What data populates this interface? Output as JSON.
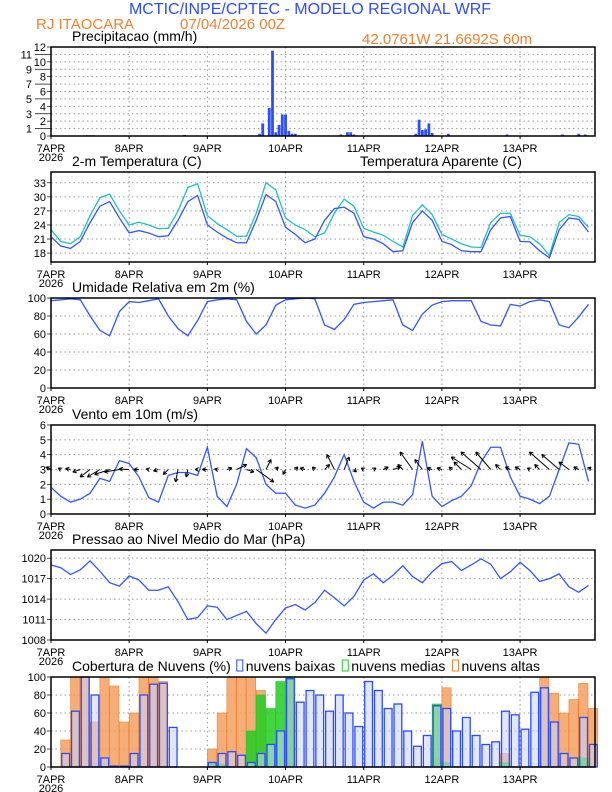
{
  "header": {
    "title": "MCTIC/INPE/CPTEC - MODELO REGIONAL WRF",
    "location": "RJ ITAOCARA",
    "run": "07/04/2026 00Z",
    "coords": "42.0761W 21.6692S 60m"
  },
  "colors": {
    "title": "#2b4cff",
    "orange": "#f08030",
    "line": "#3355ff",
    "apparent": "#20c0c0",
    "green": "#22cc22",
    "orange_fill": "#f5a060",
    "blue_fill": "#c8d4ff"
  },
  "x_axis": {
    "labels": [
      "7APR",
      "8APR",
      "9APR",
      "10APR",
      "11APR",
      "12APR",
      "13APR"
    ],
    "year": "2026",
    "step_hours": 3
  },
  "chart_data": [
    {
      "id": "precip",
      "type": "bar",
      "title": "Precipitacao (mm/h)",
      "ylim": [
        0,
        12
      ],
      "yticks": [
        "0",
        "1",
        "2",
        "3",
        "4",
        "5",
        "6",
        "7",
        "8",
        "9",
        "10",
        "11",
        "12"
      ],
      "grid": true,
      "hours": [
        11,
        12,
        13,
        41,
        64,
        65,
        67,
        68,
        69,
        70,
        71,
        72,
        73,
        74,
        75,
        89,
        91,
        92,
        93,
        112,
        113,
        114,
        115,
        116,
        117,
        122,
        140,
        157,
        162,
        164
      ],
      "values": [
        0.1,
        0.1,
        0.1,
        0.15,
        0.3,
        1.7,
        3.8,
        11.5,
        0.5,
        1.5,
        2.9,
        2.9,
        0.7,
        0.3,
        0.3,
        0.2,
        0.5,
        0.5,
        0.2,
        0.3,
        2.2,
        0.8,
        0.9,
        1.7,
        0.4,
        0.3,
        0.2,
        0.2,
        0.3,
        0.2
      ]
    },
    {
      "id": "temp",
      "type": "line",
      "title": "2-m Temperatura (C)",
      "ylim": [
        16.1,
        35.3
      ],
      "yticks": [
        "18",
        "21",
        "24",
        "27",
        "30",
        "33"
      ],
      "grid": true,
      "series": [
        {
          "name": "Temperatura Aparente (C)",
          "values": [
            23,
            20.5,
            20,
            21.5,
            26,
            29.8,
            30.6,
            27,
            24,
            24.6,
            24,
            23.2,
            23.3,
            27,
            32,
            32.8,
            26,
            24.3,
            23,
            21.6,
            21.6,
            26.5,
            33,
            31.5,
            25.5,
            24,
            23,
            21.5,
            22.3,
            26.5,
            29.5,
            28,
            23.3,
            22.5,
            21.8,
            20.5,
            19.3,
            26,
            28.3,
            26.2,
            22,
            21,
            20,
            19.3,
            19.2,
            24.5,
            26.5,
            26.5,
            21.8,
            21.5,
            20,
            17.5,
            24.5,
            26.2,
            25.8,
            23.5
          ]
        },
        {
          "name": "",
          "values": [
            21.5,
            19.5,
            19,
            20.5,
            24.5,
            28,
            29,
            25.5,
            22.3,
            22.8,
            22.3,
            21.5,
            21.7,
            25,
            29,
            30.3,
            24,
            22.5,
            21.2,
            20.2,
            20.2,
            25,
            30.5,
            29,
            23.5,
            22,
            20.2,
            21,
            25,
            27.5,
            27.8,
            26.5,
            21.5,
            21,
            20,
            18.3,
            18.5,
            24.5,
            27,
            25,
            20.5,
            19.8,
            18.5,
            18.3,
            18.3,
            23,
            25.5,
            25.8,
            20.5,
            20.4,
            18.5,
            17,
            23,
            25.5,
            25.2,
            22.5
          ]
        }
      ]
    },
    {
      "id": "rh",
      "type": "line",
      "title": "Umidade Relativa em 2m (%)",
      "ylim": [
        0,
        100
      ],
      "yticks": [
        "0",
        "20",
        "40",
        "60",
        "80",
        "100"
      ],
      "grid": true,
      "values": [
        97,
        98,
        99,
        98,
        80,
        64,
        58,
        85,
        96,
        95,
        97,
        99,
        80,
        66,
        58,
        75,
        96,
        98,
        99,
        98,
        74,
        60,
        70,
        92,
        98,
        99,
        100,
        99,
        70,
        65,
        76,
        93,
        95,
        96,
        97,
        98,
        70,
        64,
        82,
        92,
        96,
        97,
        97,
        97,
        74,
        70,
        69,
        93,
        91,
        96,
        98,
        96,
        70,
        67,
        79,
        93
      ]
    },
    {
      "id": "wind",
      "type": "line",
      "title": "Vento em 10m (m/s)",
      "ylim": [
        0,
        6
      ],
      "yticks": [
        "0",
        "1",
        "2",
        "3",
        "4",
        "5",
        "6"
      ],
      "grid": true,
      "values": [
        1.8,
        1.2,
        0.8,
        1.0,
        1.4,
        2.4,
        2.2,
        3.6,
        3.4,
        2.5,
        1.1,
        0.8,
        2.6,
        2.8,
        2.8,
        2.6,
        4.5,
        1.2,
        0.5,
        2.0,
        4.4,
        3.8,
        2.0,
        1.4,
        1.4,
        0.6,
        0.4,
        0.6,
        1.4,
        2.5,
        4.0,
        2.2,
        0.8,
        0.4,
        0.8,
        0.8,
        0.6,
        1.3,
        4.9,
        1.2,
        0.5,
        0.9,
        1.2,
        1.9,
        3.5,
        4.5,
        4.5,
        2.5,
        1.2,
        1.0,
        0.7,
        1.2,
        3.0,
        4.8,
        4.7,
        2.2
      ],
      "vectors_u": [
        -1,
        -0.5,
        -1,
        -1.5,
        -2,
        -2.5,
        -3,
        -3,
        -2,
        -1,
        -0.5,
        -1,
        -1,
        -0.5,
        -0.3,
        -0.5,
        -1,
        -0.5,
        1,
        2,
        1.5,
        3.5,
        1,
        0.5,
        -0.5,
        0.5,
        -1,
        -0.5,
        1,
        -1.5,
        1,
        0.5,
        -0.5,
        0.5,
        1,
        1.5,
        -1,
        -2.5,
        -1.5,
        -1,
        -1,
        -0.5,
        -1.5,
        -4,
        -4,
        -3,
        -1,
        -1,
        -1,
        -0.5,
        -1,
        -4,
        -3.5,
        -2,
        -1,
        0.5
      ],
      "vectors_v": [
        0.5,
        0.3,
        0.2,
        -0.5,
        -1.5,
        -1.5,
        -1,
        -0.5,
        0.1,
        0,
        0.1,
        -0.3,
        -1,
        -2.5,
        -1.5,
        0,
        0,
        0.1,
        0.3,
        1,
        -0.5,
        -2.5,
        2,
        0.5,
        -1,
        0.5,
        0.3,
        0.5,
        1,
        3,
        2.5,
        -0.5,
        0.3,
        0.3,
        0.5,
        0.5,
        1,
        3.5,
        2,
        0.3,
        0.3,
        0.5,
        1.5,
        2.5,
        3.5,
        3.5,
        1,
        0.5,
        0.5,
        0.3,
        1,
        3.5,
        3,
        1.5,
        0.5,
        0.5
      ]
    },
    {
      "id": "pressure",
      "type": "line",
      "title": "Pressao ao Nivel Medio do Mar (hPa)",
      "ylim": [
        1008,
        1021.2
      ],
      "yticks": [
        "1008",
        "1011",
        "1014",
        "1017",
        "1020"
      ],
      "grid": true,
      "values": [
        1019,
        1018.6,
        1017.6,
        1018.3,
        1019.6,
        1018.1,
        1016.4,
        1015.9,
        1017.4,
        1016.8,
        1015.3,
        1015.3,
        1015.8,
        1013.6,
        1011,
        1011.3,
        1013,
        1012.8,
        1011,
        1011.6,
        1012.2,
        1010.4,
        1009,
        1011,
        1012.7,
        1013.2,
        1012.4,
        1013.5,
        1015.3,
        1014.2,
        1013,
        1014.4,
        1016.8,
        1017.7,
        1016.4,
        1017.5,
        1018.9,
        1017.3,
        1016.4,
        1018,
        1019.2,
        1019.5,
        1018.2,
        1019,
        1019.9,
        1019.1,
        1017,
        1018,
        1019.4,
        1018.2,
        1016.6,
        1017,
        1017.7,
        1015.8,
        1015,
        1016
      ]
    },
    {
      "id": "clouds",
      "type": "bar",
      "title": "Cobertura de Nuvens (%)",
      "ylim": [
        0,
        100
      ],
      "yticks": [
        "0",
        "20",
        "40",
        "60",
        "80",
        "100"
      ],
      "grid": true,
      "series": [
        {
          "name": "nuvens altas",
          "values": [
            0,
            30,
            100,
            100,
            50,
            100,
            90,
            50,
            60,
            100,
            100,
            95,
            0,
            0,
            0,
            0,
            20,
            60,
            100,
            100,
            100,
            85,
            0,
            0,
            100,
            0,
            0,
            0,
            0,
            0,
            0,
            0,
            0,
            0,
            0,
            0,
            0,
            0,
            0,
            10,
            88,
            0,
            0,
            0,
            0,
            0,
            15,
            0,
            0,
            0,
            100,
            82,
            60,
            75,
            93,
            65
          ]
        },
        {
          "name": "nuvens medias",
          "values": [
            0,
            0,
            0,
            0,
            0,
            0,
            0,
            0,
            0,
            0,
            0,
            0,
            0,
            0,
            0,
            0,
            5,
            3,
            0,
            0,
            40,
            80,
            65,
            95,
            100,
            0,
            0,
            0,
            0,
            0,
            0,
            0,
            0,
            0,
            0,
            0,
            0,
            0,
            0,
            70,
            5,
            0,
            0,
            0,
            0,
            0,
            5,
            0,
            0,
            0,
            0,
            0,
            0,
            0,
            10,
            0
          ]
        },
        {
          "name": "nuvens baixas",
          "values": [
            0,
            15,
            62,
            100,
            80,
            10,
            1,
            1,
            15,
            80,
            92,
            93,
            44,
            0,
            0,
            0,
            5,
            15,
            17,
            13,
            5,
            15,
            25,
            40,
            98,
            72,
            85,
            80,
            62,
            80,
            60,
            45,
            95,
            85,
            65,
            70,
            40,
            23,
            35,
            68,
            65,
            40,
            55,
            35,
            25,
            28,
            62,
            58,
            42,
            83,
            88,
            50,
            15,
            10,
            55,
            25
          ]
        }
      ]
    }
  ]
}
